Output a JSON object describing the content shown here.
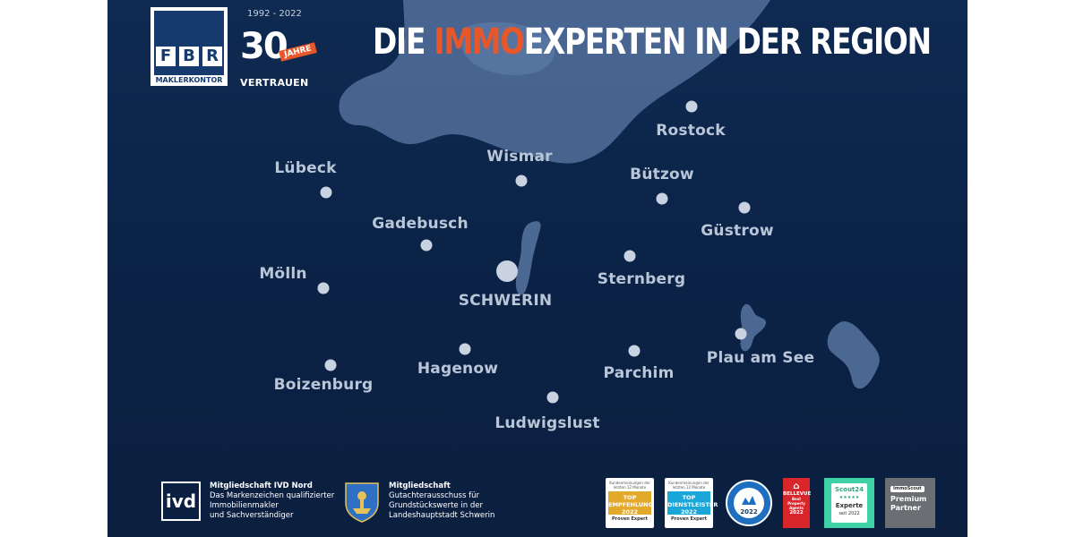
{
  "header": {
    "headline_prefix": "DIE ",
    "headline_accent": "IMMO",
    "headline_suffix": "EXPERTEN IN DER REGION",
    "accent_color": "#e8572a"
  },
  "logo": {
    "letters": [
      "F",
      "B",
      "R"
    ],
    "name": "MAKLERKONTOR"
  },
  "anniversary": {
    "years": "1992 - 2022",
    "number": "30",
    "badge": "JAHRE",
    "tagline": "VERTRAUEN"
  },
  "cities": [
    {
      "name": "Rostock"
    },
    {
      "name": "Wismar"
    },
    {
      "name": "Lübeck"
    },
    {
      "name": "Bützow"
    },
    {
      "name": "Güstrow"
    },
    {
      "name": "Gadebusch"
    },
    {
      "name": "Mölln"
    },
    {
      "name": "SCHWERIN"
    },
    {
      "name": "Sternberg"
    },
    {
      "name": "Hagenow"
    },
    {
      "name": "Parchim"
    },
    {
      "name": "Plau am See"
    },
    {
      "name": "Boizenburg"
    },
    {
      "name": "Ludwigslust"
    }
  ],
  "memberships": [
    {
      "logo_text": "ivd",
      "title": "Mitgliedschaft IVD Nord",
      "lines": [
        "Das Markenzeichen qualifizierter",
        "Immobilienmakler",
        "und Sachverständiger"
      ]
    },
    {
      "logo_icon": "schwerin-crest-icon",
      "title": "Mitgliedschaft",
      "lines": [
        "Gutachterausschuss für",
        "Grundstückswerte in der",
        "Landeshauptstadt Schwerin"
      ]
    }
  ],
  "badges": {
    "pe1": {
      "top": "Kundenmeinungen der letzten 12 Monate",
      "mid": [
        "TOP",
        "EMPFEHLUNG",
        "2022"
      ],
      "bot": "Proven Expert",
      "color": "#e3a92b"
    },
    "pe2": {
      "top": "Kundenmeinungen der letzten 12 Monate",
      "mid": [
        "TOP",
        "DIENSTLEISTER",
        "2022"
      ],
      "bot": "Proven Expert",
      "color": "#1aa6d8"
    },
    "seal": {
      "year": "2022"
    },
    "bellevue": {
      "name": "BELLEVUE",
      "sub": "Best Property Agents",
      "year": "2022"
    },
    "scout": {
      "name": "Scout24",
      "label": "Experte",
      "since": "seit 2022"
    },
    "premium": {
      "pill": "ImmoScout",
      "line1": "Premium",
      "line2": "Partner"
    }
  }
}
